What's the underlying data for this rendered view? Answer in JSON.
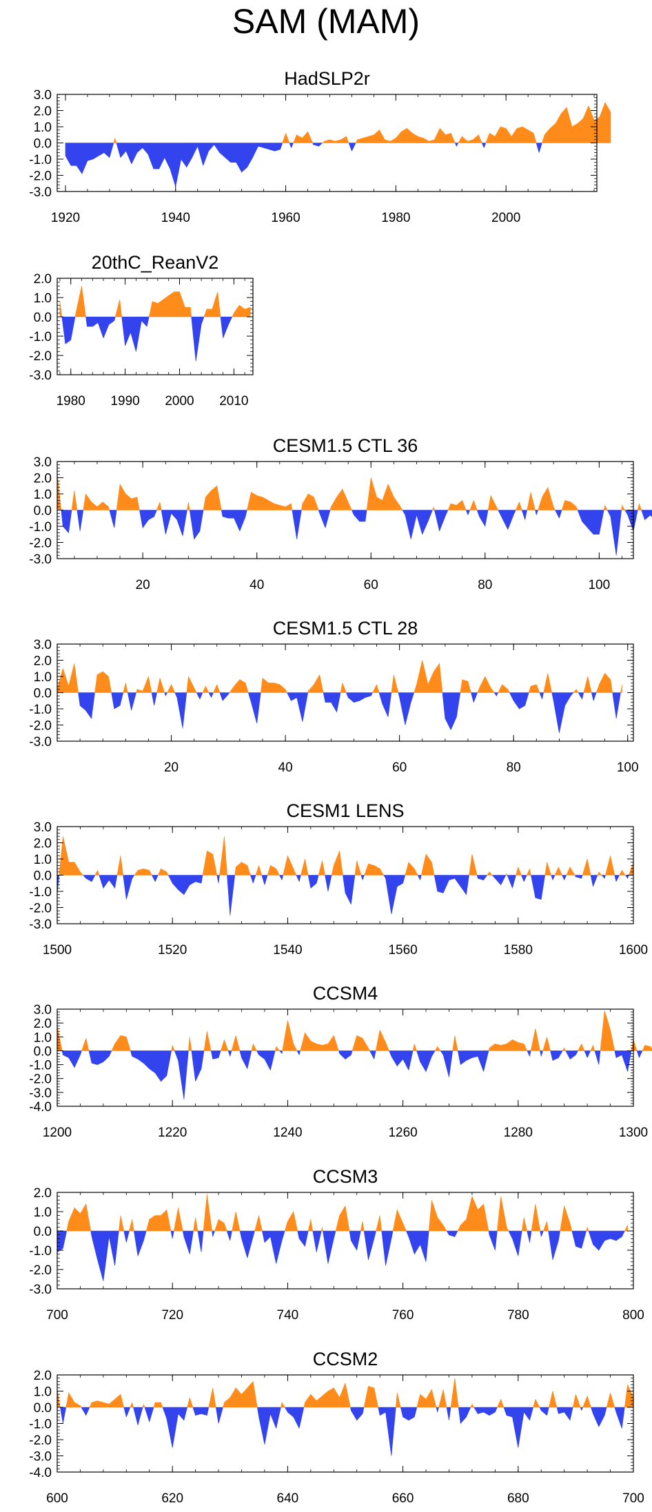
{
  "title": "SAM (MAM)",
  "colors": {
    "positive": "#ff8c1a",
    "negative": "#3344ee",
    "frame": "#000000"
  },
  "chart_data": [
    {
      "type": "area",
      "title": "HadSLP2r",
      "xlim": [
        1918.5,
        2016.5
      ],
      "ylim": [
        -3.0,
        3.0
      ],
      "yticks": [
        -3.0,
        -2.0,
        -1.0,
        0.0,
        1.0,
        2.0,
        3.0
      ],
      "xticks": [
        1920,
        1940,
        1960,
        1980,
        2000
      ],
      "x_start": 1920,
      "values": [
        -0.8,
        -1.4,
        -1.4,
        -1.9,
        -1.1,
        -1.0,
        -0.8,
        -0.6,
        -0.9,
        0.3,
        -0.9,
        -0.5,
        -1.3,
        -0.6,
        -0.3,
        -0.7,
        -1.6,
        -1.6,
        -0.9,
        -1.6,
        -2.7,
        -1.0,
        -1.5,
        -0.9,
        -0.2,
        -1.4,
        -0.5,
        -0.1,
        -0.6,
        -0.9,
        -1.2,
        -1.2,
        -1.8,
        -1.5,
        -0.9,
        -0.2,
        -0.3,
        -0.4,
        -0.5,
        -0.4,
        0.6,
        -0.3,
        0.5,
        0.3,
        0.7,
        -0.1,
        -0.2,
        0.1,
        0.2,
        0.1,
        0.2,
        0.4,
        -0.5,
        0.2,
        0.3,
        0.4,
        0.5,
        0.8,
        0.2,
        0.1,
        0.3,
        0.7,
        0.9,
        0.6,
        0.4,
        0.3,
        0.1,
        0.2,
        0.9,
        0.5,
        0.6,
        -0.2,
        0.4,
        0.1,
        0.2,
        0.5,
        -0.3,
        0.6,
        0.4,
        1.0,
        0.9,
        0.4,
        0.9,
        1.0,
        0.8,
        0.6,
        -0.6,
        0.5,
        0.9,
        1.2,
        1.8,
        2.2,
        1.0,
        1.2,
        1.5,
        2.3,
        1.4,
        1.6,
        2.5,
        1.9
      ]
    },
    {
      "type": "area",
      "title": "20thC_ReanV2",
      "xlim": [
        1977.5,
        2013.5
      ],
      "ylim": [
        -3.0,
        2.0
      ],
      "yticks": [
        -3.0,
        -2.0,
        -1.0,
        0.0,
        1.0,
        2.0
      ],
      "xticks": [
        1980,
        1990,
        2000,
        2010
      ],
      "x_start": 1978,
      "values": [
        0.8,
        -1.4,
        -1.2,
        0.3,
        1.6,
        -0.5,
        -0.5,
        -0.3,
        -1.1,
        -0.4,
        -0.2,
        0.9,
        -1.5,
        -0.8,
        -1.8,
        -0.2,
        -0.5,
        0.8,
        0.7,
        0.9,
        1.1,
        1.3,
        1.3,
        0.5,
        0.5,
        -2.3,
        -0.4,
        0.4,
        0.4,
        1.3,
        -1.1,
        -0.4,
        0.2,
        0.6,
        0.4,
        0.5
      ]
    },
    {
      "type": "area",
      "title": "CESM1.5 CTL 36",
      "xlim": [
        5,
        106
      ],
      "ylim": [
        -3.0,
        3.0
      ],
      "yticks": [
        -3.0,
        -2.0,
        -1.0,
        0.0,
        1.0,
        2.0,
        3.0
      ],
      "xticks": [
        20,
        40,
        60,
        80,
        100
      ],
      "x_start": 5,
      "values": [
        2.3,
        -1.0,
        -1.4,
        1.2,
        -1.3,
        1.0,
        0.5,
        0.2,
        0.5,
        0.2,
        -1.1,
        1.6,
        1.0,
        0.7,
        0.8,
        -1.1,
        -0.6,
        -0.4,
        0.5,
        -1.5,
        -0.2,
        -0.6,
        -1.6,
        0.5,
        -1.8,
        -1.3,
        0.8,
        1.2,
        1.5,
        -0.4,
        -0.5,
        -0.5,
        -1.3,
        -0.4,
        1.1,
        0.9,
        0.8,
        0.6,
        0.4,
        0.3,
        0.2,
        0.4,
        -1.8,
        0.4,
        1.0,
        0.8,
        -0.2,
        -1.1,
        0.2,
        0.8,
        1.3,
        0.5,
        -0.3,
        -0.7,
        -0.7,
        2.0,
        0.8,
        0.6,
        1.6,
        0.8,
        0.3,
        -0.3,
        -1.8,
        -0.3,
        -1.5,
        -0.7,
        0.2,
        -1.3,
        -0.4,
        0.4,
        0.3,
        0.6,
        -0.3,
        0.6,
        -0.4,
        -1.0,
        0.9,
        0.2,
        -0.5,
        -1.2,
        -0.3,
        0.5,
        -0.6,
        1.1,
        -0.3,
        0.8,
        1.4,
        0.2,
        -0.5,
        0.6,
        0.5,
        0.2,
        -0.7,
        -1.1,
        -1.5,
        -1.5,
        0.3,
        -0.4,
        -2.8,
        0.3,
        -0.3,
        -1.3,
        0.4,
        -0.6,
        -0.3,
        -0.8
      ]
    },
    {
      "type": "area",
      "title": "CESM1.5 CTL 28",
      "xlim": [
        0,
        101
      ],
      "ylim": [
        -3.0,
        3.0
      ],
      "yticks": [
        -3.0,
        -2.0,
        -1.0,
        0.0,
        1.0,
        2.0,
        3.0
      ],
      "xticks": [
        20,
        40,
        60,
        80,
        100
      ],
      "x_start": 0,
      "values": [
        0.2,
        1.5,
        0.4,
        1.8,
        -0.8,
        -1.1,
        -1.6,
        1.1,
        1.3,
        1.0,
        -1.0,
        -0.8,
        0.6,
        -1.1,
        0.2,
        0.1,
        1.0,
        -0.8,
        0.9,
        -0.2,
        0.5,
        -0.3,
        -2.2,
        1.0,
        0.3,
        -0.4,
        0.4,
        -0.3,
        0.5,
        -0.5,
        -0.1,
        0.4,
        0.8,
        0.6,
        -0.6,
        -1.9,
        0.9,
        0.6,
        0.6,
        0.5,
        0.2,
        -0.5,
        -0.3,
        -1.8,
        0.1,
        0.5,
        1.1,
        -0.6,
        -0.6,
        -1.2,
        0.6,
        -0.3,
        -0.6,
        -0.5,
        -0.3,
        -0.2,
        0.5,
        -0.7,
        -1.5,
        1.1,
        -0.3,
        -2.0,
        -0.6,
        0.5,
        2.0,
        0.5,
        1.3,
        1.8,
        -1.6,
        -2.3,
        -1.5,
        0.8,
        0.7,
        -0.6,
        0.3,
        1.0,
        0.3,
        -0.2,
        0.5,
        0.2,
        -0.5,
        -1.0,
        -0.8,
        0.4,
        0.5,
        -0.4,
        1.2,
        -0.5,
        -2.5,
        -0.8,
        -0.2,
        0.2,
        -0.4,
        1.0,
        -0.5,
        0.5,
        1.2,
        0.8,
        -1.6,
        0.5
      ]
    },
    {
      "type": "area",
      "title": "CESM1 LENS",
      "xlim": [
        1500,
        1600
      ],
      "ylim": [
        -3.0,
        3.0
      ],
      "yticks": [
        -3.0,
        -2.0,
        -1.0,
        0.0,
        1.0,
        2.0,
        3.0
      ],
      "xticks": [
        1500,
        1520,
        1540,
        1560,
        1580,
        1600
      ],
      "x_start": 1500,
      "values": [
        -1.2,
        2.4,
        0.8,
        0.8,
        0.2,
        -0.2,
        -0.4,
        0.3,
        -0.8,
        -0.3,
        -0.8,
        1.2,
        -1.5,
        -0.2,
        0.3,
        0.4,
        0.3,
        -0.4,
        0.4,
        0.2,
        -0.5,
        -0.9,
        -1.2,
        -0.6,
        -0.4,
        -0.5,
        1.5,
        1.3,
        -0.5,
        2.4,
        -2.5,
        0.5,
        0.8,
        0.6,
        -0.5,
        0.6,
        -0.6,
        0.6,
        0.4,
        -0.3,
        1.2,
        0.4,
        -0.4,
        1.0,
        -0.8,
        -0.5,
        0.9,
        -1.0,
        0.6,
        1.5,
        -1.1,
        -1.8,
        0.9,
        -0.3,
        0.7,
        0.6,
        0.4,
        -0.2,
        -2.4,
        -0.7,
        -0.5,
        0.8,
        0.4,
        -0.3,
        1.3,
        0.8,
        -1.0,
        -1.1,
        -0.3,
        -0.2,
        -0.7,
        -1.2,
        1.3,
        -0.2,
        -0.3,
        0.2,
        -0.2,
        -0.6,
        0.1,
        -0.8,
        0.5,
        -0.4,
        0.4,
        -1.4,
        -1.5,
        0.8,
        -0.3,
        0.5,
        -0.3,
        0.5,
        -0.1,
        -0.2,
        1.0,
        -0.7,
        0.2,
        -0.2,
        1.2,
        -0.4,
        0.3,
        -0.2,
        0.8
      ]
    },
    {
      "type": "area",
      "title": "CCSM4",
      "xlim": [
        1200,
        1300
      ],
      "ylim": [
        -4.0,
        3.0
      ],
      "yticks": [
        -4.0,
        -3.0,
        -2.0,
        -1.0,
        0.0,
        1.0,
        2.0,
        3.0
      ],
      "xticks": [
        1200,
        1220,
        1240,
        1260,
        1280,
        1300
      ],
      "x_start": 1200,
      "values": [
        1.8,
        -0.3,
        -0.5,
        -1.2,
        -0.3,
        0.9,
        -0.9,
        -1.0,
        -0.8,
        -0.4,
        0.5,
        1.1,
        1.0,
        -0.4,
        -0.6,
        -0.9,
        -1.3,
        -1.6,
        -2.2,
        -1.8,
        0.4,
        -0.7,
        -3.5,
        1.0,
        -2.2,
        -1.3,
        1.4,
        -0.6,
        -0.5,
        0.8,
        -0.4,
        1.1,
        -0.5,
        -1.3,
        0.5,
        -0.3,
        -0.6,
        -1.4,
        0.3,
        -0.2,
        2.2,
        0.5,
        -0.3,
        1.3,
        0.7,
        0.5,
        0.4,
        0.5,
        1.1,
        -0.2,
        -0.6,
        -0.3,
        1.1,
        0.9,
        0.2,
        -0.6,
        1.5,
        0.6,
        -0.4,
        -1.1,
        -0.6,
        -1.4,
        0.5,
        -0.8,
        -1.5,
        -0.4,
        0.3,
        -0.3,
        -1.9,
        1.1,
        -1.0,
        -0.7,
        -0.5,
        -0.4,
        -1.5,
        0.2,
        0.5,
        0.4,
        0.5,
        0.8,
        0.6,
        0.5,
        -0.4,
        1.6,
        -0.4,
        1.0,
        -0.7,
        -0.5,
        0.2,
        -0.6,
        -0.3,
        0.5,
        -0.5,
        0.4,
        -1.0,
        2.9,
        1.5,
        -0.5,
        -0.3,
        -1.5,
        0.8,
        -0.5,
        0.4,
        0.3,
        -0.5
      ]
    },
    {
      "type": "area",
      "title": "CCSM3",
      "xlim": [
        700,
        800
      ],
      "ylim": [
        -3.0,
        2.0
      ],
      "yticks": [
        -3.0,
        -2.0,
        -1.0,
        0.0,
        1.0,
        2.0
      ],
      "xticks": [
        700,
        720,
        740,
        760,
        780,
        800
      ],
      "x_start": 700,
      "values": [
        -1.1,
        -0.9,
        0.5,
        1.2,
        0.9,
        1.4,
        -0.3,
        -1.5,
        -2.6,
        -0.3,
        -1.8,
        0.8,
        -0.6,
        0.6,
        -1.3,
        -0.5,
        0.6,
        0.8,
        0.8,
        1.1,
        -0.4,
        1.2,
        -0.3,
        -1.2,
        0.7,
        -1.1,
        1.9,
        -0.3,
        0.6,
        0.4,
        -0.5,
        1.0,
        -0.4,
        -1.4,
        -0.3,
        0.8,
        -0.6,
        -0.3,
        -1.7,
        -0.5,
        0.5,
        1.0,
        -0.4,
        -0.8,
        0.6,
        -1.1,
        0.2,
        -1.7,
        -0.4,
        0.8,
        1.3,
        -0.5,
        -1.0,
        0.5,
        -1.5,
        -0.4,
        0.8,
        -1.8,
        -0.4,
        1.1,
        0.4,
        -0.3,
        -1.2,
        -0.7,
        -1.6,
        1.6,
        0.7,
        0.3,
        -0.2,
        -0.3,
        0.3,
        0.6,
        1.8,
        1.1,
        1.4,
        -0.2,
        -1.0,
        1.8,
        0.2,
        -0.4,
        -1.3,
        0.7,
        -0.6,
        1.4,
        -0.3,
        0.5,
        -1.5,
        -0.5,
        1.3,
        0.4,
        -0.8,
        -0.9,
        0.2,
        -0.7,
        -1.0,
        -0.5,
        -0.4,
        -0.5,
        -0.3,
        0.3
      ]
    },
    {
      "type": "area",
      "title": "CCSM2",
      "xlim": [
        600,
        700
      ],
      "ylim": [
        -4.0,
        2.0
      ],
      "yticks": [
        -4.0,
        -3.0,
        -2.0,
        -1.0,
        0.0,
        1.0,
        2.0
      ],
      "xticks": [
        600,
        620,
        640,
        660,
        680,
        700
      ],
      "x_start": 600,
      "values": [
        1.1,
        -1.0,
        0.9,
        0.3,
        0.1,
        -0.5,
        0.3,
        0.4,
        0.3,
        0.2,
        0.5,
        0.8,
        -0.6,
        0.3,
        -1.1,
        0.2,
        -0.9,
        0.3,
        0.3,
        -0.7,
        -2.5,
        -0.4,
        -0.8,
        0.6,
        -0.5,
        -0.4,
        -0.5,
        1.2,
        -1.0,
        0.3,
        0.6,
        1.2,
        0.8,
        1.2,
        1.6,
        -0.6,
        -2.3,
        -0.4,
        -1.3,
        0.3,
        -0.3,
        -0.6,
        -1.3,
        0.3,
        0.8,
        0.4,
        0.7,
        1.0,
        1.2,
        0.6,
        1.5,
        -0.2,
        -0.8,
        -0.4,
        1.3,
        1.2,
        -0.5,
        -0.3,
        -3.0,
        0.9,
        -0.6,
        -0.8,
        -0.6,
        0.8,
        0.5,
        1.1,
        -0.3,
        1.1,
        -0.8,
        1.8,
        -1.0,
        -0.6,
        0.2,
        -0.4,
        -0.3,
        -0.5,
        -0.3,
        0.5,
        -0.5,
        -0.6,
        -2.5,
        -0.3,
        -0.8,
        0.5,
        -0.2,
        -0.5,
        1.0,
        -0.4,
        -0.3,
        -0.8,
        0.8,
        -0.2,
        0.7,
        -0.4,
        -1.2,
        -0.5,
        0.9,
        -0.3,
        -1.3,
        1.4,
        0.6
      ]
    }
  ]
}
